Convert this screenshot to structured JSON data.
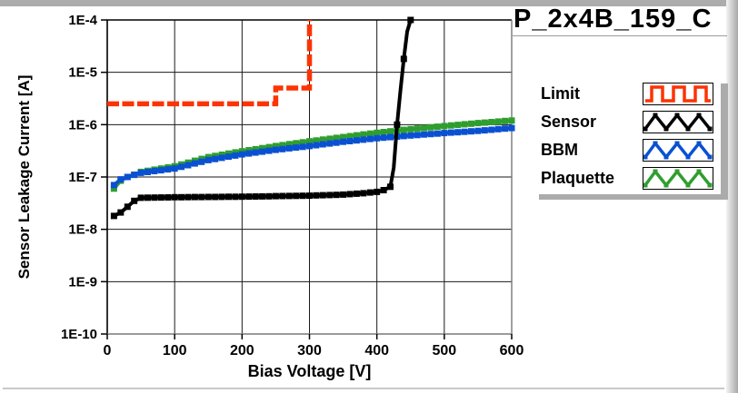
{
  "title": "P_2x4B_159_C",
  "axes": {
    "y_label": "Sensor Leakage Current [A]",
    "x_label": "Bias Voltage [V]",
    "y_ticks": [
      "1E-4",
      "1E-5",
      "1E-6",
      "1E-7",
      "1E-8",
      "1E-9",
      "1E-10"
    ],
    "x_ticks": [
      "0",
      "100",
      "200",
      "300",
      "400",
      "500",
      "600"
    ]
  },
  "legend": {
    "items": [
      {
        "label": "Limit",
        "style": "square-wave",
        "color": "#fc3303"
      },
      {
        "label": "Sensor",
        "style": "zigzag",
        "color": "#000000"
      },
      {
        "label": "BBM",
        "style": "zigzag",
        "color": "#0a50d2"
      },
      {
        "label": "Plaquette",
        "style": "zigzag",
        "color": "#2f9e2f"
      }
    ]
  },
  "chart_data": {
    "type": "line",
    "title": "P_2x4B_159_C",
    "xlabel": "Bias Voltage [V]",
    "ylabel": "Sensor Leakage Current [A]",
    "xlim": [
      0,
      600
    ],
    "ylim": [
      1e-10,
      0.0001
    ],
    "y_scale": "log",
    "grid": true,
    "legend_position": "right",
    "marker_step_V": 10,
    "series": [
      {
        "name": "Limit",
        "color": "#fc3303",
        "line": "dashed-step",
        "marker": "none",
        "points": [
          [
            0,
            2.5e-06
          ],
          [
            250,
            2.5e-06
          ],
          [
            250,
            5e-06
          ],
          [
            300,
            5e-06
          ],
          [
            300,
            0.0001
          ]
        ]
      },
      {
        "name": "Sensor",
        "color": "#000000",
        "line": "solid",
        "marker": "square",
        "points": [
          [
            10,
            1.8e-08
          ],
          [
            20,
            2.1e-08
          ],
          [
            30,
            2.7e-08
          ],
          [
            40,
            3.5e-08
          ],
          [
            50,
            4e-08
          ],
          [
            100,
            4.1e-08
          ],
          [
            200,
            4.2e-08
          ],
          [
            300,
            4.4e-08
          ],
          [
            350,
            4.6e-08
          ],
          [
            380,
            4.9e-08
          ],
          [
            400,
            5.2e-08
          ],
          [
            410,
            5.6e-08
          ],
          [
            420,
            6.5e-08
          ],
          [
            425,
            1.5e-07
          ],
          [
            430,
            1e-06
          ],
          [
            435,
            4.5e-06
          ],
          [
            440,
            1.8e-05
          ],
          [
            445,
            6e-05
          ],
          [
            450,
            0.0001
          ]
        ]
      },
      {
        "name": "BBM",
        "color": "#0a50d2",
        "line": "solid",
        "marker": "square",
        "points": [
          [
            10,
            7e-08
          ],
          [
            20,
            9e-08
          ],
          [
            30,
            1e-07
          ],
          [
            40,
            1.1e-07
          ],
          [
            50,
            1.2e-07
          ],
          [
            100,
            1.45e-07
          ],
          [
            150,
            2.1e-07
          ],
          [
            200,
            2.7e-07
          ],
          [
            250,
            3.3e-07
          ],
          [
            300,
            3.9e-07
          ],
          [
            350,
            4.7e-07
          ],
          [
            400,
            5.5e-07
          ],
          [
            450,
            6.2e-07
          ],
          [
            500,
            6.9e-07
          ],
          [
            550,
            7.6e-07
          ],
          [
            600,
            8.6e-07
          ]
        ]
      },
      {
        "name": "Plaquette",
        "color": "#2f9e2f",
        "line": "solid",
        "marker": "square",
        "points": [
          [
            10,
            6e-08
          ],
          [
            20,
            8.5e-08
          ],
          [
            30,
            1e-07
          ],
          [
            40,
            1.1e-07
          ],
          [
            50,
            1.25e-07
          ],
          [
            100,
            1.6e-07
          ],
          [
            150,
            2.4e-07
          ],
          [
            200,
            3.1e-07
          ],
          [
            250,
            3.9e-07
          ],
          [
            300,
            4.8e-07
          ],
          [
            350,
            5.8e-07
          ],
          [
            400,
            7e-07
          ],
          [
            450,
            8.2e-07
          ],
          [
            500,
            9.4e-07
          ],
          [
            550,
            1.07e-06
          ],
          [
            600,
            1.2e-06
          ]
        ]
      }
    ]
  }
}
